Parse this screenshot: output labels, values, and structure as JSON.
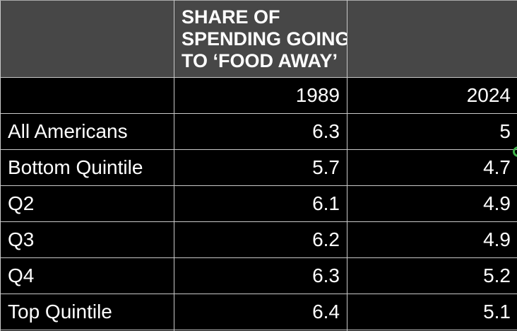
{
  "table": {
    "header": {
      "title": "SHARE OF\nSPENDING GOING\nTO ‘FOOD AWAY’"
    },
    "year_header": {
      "y1989": "1989",
      "y2024": "2024"
    },
    "rows": [
      {
        "label": "All Americans",
        "v1989": "6.3",
        "v2024": "5"
      },
      {
        "label": "Bottom Quintile",
        "v1989": "5.7",
        "v2024": "4.7"
      },
      {
        "label": "Q2",
        "v1989": "6.1",
        "v2024": "4.9"
      },
      {
        "label": "Q3",
        "v1989": "6.2",
        "v2024": "4.9"
      },
      {
        "label": "Q4",
        "v1989": "6.3",
        "v2024": "5.2"
      },
      {
        "label": "Top Quintile",
        "v1989": "6.4",
        "v2024": "5.1"
      }
    ]
  },
  "colors": {
    "background": "#000000",
    "header_background": "#474747",
    "border": "#c9c9c9",
    "text": "#ffffff",
    "presence_dot_green": "#3fb24a"
  },
  "chart_data": {
    "type": "table",
    "title": "SHARE OF SPENDING GOING TO ‘FOOD AWAY’",
    "columns": [
      "",
      "1989",
      "2024"
    ],
    "rows": [
      [
        "All Americans",
        6.3,
        5
      ],
      [
        "Bottom Quintile",
        5.7,
        4.7
      ],
      [
        "Q2",
        6.1,
        4.9
      ],
      [
        "Q3",
        6.2,
        4.9
      ],
      [
        "Q4",
        6.3,
        5.2
      ],
      [
        "Top Quintile",
        6.4,
        5.1
      ]
    ]
  }
}
